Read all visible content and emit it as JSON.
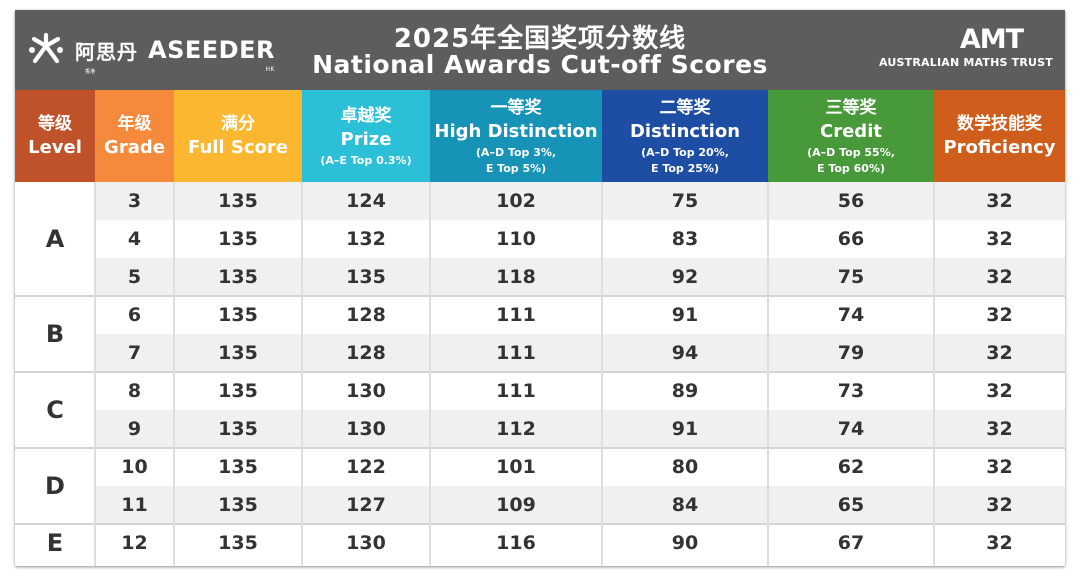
{
  "brand_left": {
    "cn": "阿思丹",
    "en": "ASEEDER",
    "hk": "HK",
    "cn_hk": "香港"
  },
  "title": {
    "cn": "2025年全国奖项分数线",
    "en": "National Awards Cut-off Scores"
  },
  "brand_right": {
    "mark": "AMT",
    "text": "AUSTRALIAN MATHS TRUST"
  },
  "columns": [
    {
      "cn": "等级",
      "en": "Level",
      "color": "#c0522a"
    },
    {
      "cn": "年级",
      "en": "Grade",
      "color": "#f58a3c"
    },
    {
      "cn": "满分",
      "en": "Full Score",
      "color": "#fab72f"
    },
    {
      "cn": "卓越奖",
      "en": "Prize",
      "sub1": "(A–E Top 0.3%)",
      "color": "#2bbfd8"
    },
    {
      "cn": "一等奖",
      "en": "High Distinction",
      "sub1": "(A–D Top 3%,",
      "sub2": "E Top 5%)",
      "color": "#1793b8"
    },
    {
      "cn": "二等奖",
      "en": "Distinction",
      "sub1": "(A–D Top 20%,",
      "sub2": "E Top 25%)",
      "color": "#1e4ea3"
    },
    {
      "cn": "三等奖",
      "en": "Credit",
      "sub1": "(A–D Top 55%,",
      "sub2": "E Top 60%)",
      "color": "#47993a"
    },
    {
      "cn": "数学技能奖",
      "en": "Proficiency",
      "color": "#cf5d1c"
    }
  ],
  "levels": [
    {
      "name": "A",
      "rows": [
        {
          "grade": "3",
          "full": "135",
          "prize": "124",
          "hd": "102",
          "dist": "75",
          "credit": "56",
          "prof": "32"
        },
        {
          "grade": "4",
          "full": "135",
          "prize": "132",
          "hd": "110",
          "dist": "83",
          "credit": "66",
          "prof": "32"
        },
        {
          "grade": "5",
          "full": "135",
          "prize": "135",
          "hd": "118",
          "dist": "92",
          "credit": "75",
          "prof": "32"
        }
      ]
    },
    {
      "name": "B",
      "rows": [
        {
          "grade": "6",
          "full": "135",
          "prize": "128",
          "hd": "111",
          "dist": "91",
          "credit": "74",
          "prof": "32"
        },
        {
          "grade": "7",
          "full": "135",
          "prize": "128",
          "hd": "111",
          "dist": "94",
          "credit": "79",
          "prof": "32"
        }
      ]
    },
    {
      "name": "C",
      "rows": [
        {
          "grade": "8",
          "full": "135",
          "prize": "130",
          "hd": "111",
          "dist": "89",
          "credit": "73",
          "prof": "32"
        },
        {
          "grade": "9",
          "full": "135",
          "prize": "130",
          "hd": "112",
          "dist": "91",
          "credit": "74",
          "prof": "32"
        }
      ]
    },
    {
      "name": "D",
      "rows": [
        {
          "grade": "10",
          "full": "135",
          "prize": "122",
          "hd": "101",
          "dist": "80",
          "credit": "62",
          "prof": "32"
        },
        {
          "grade": "11",
          "full": "135",
          "prize": "127",
          "hd": "109",
          "dist": "84",
          "credit": "65",
          "prof": "32"
        }
      ]
    },
    {
      "name": "E",
      "rows": [
        {
          "grade": "12",
          "full": "135",
          "prize": "130",
          "hd": "116",
          "dist": "90",
          "credit": "67",
          "prof": "32"
        }
      ]
    }
  ]
}
